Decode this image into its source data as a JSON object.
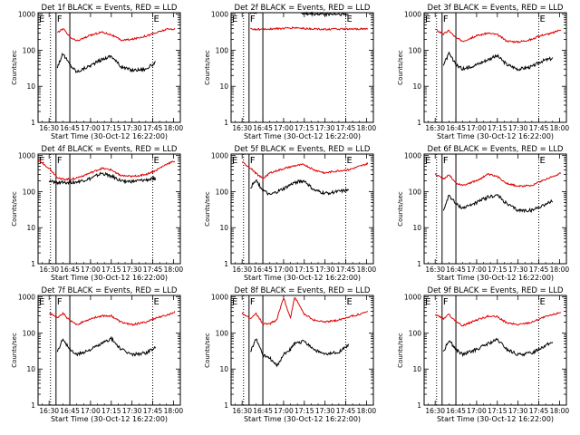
{
  "figure": {
    "ylabel": "Counts/sec",
    "xlabel": "Start Time (30-Oct-12 16:22:00)",
    "x_ticks": [
      "16:30",
      "16:45",
      "17:00",
      "17:15",
      "17:30",
      "17:45",
      "18:00"
    ],
    "y_ticks": [
      "1",
      "10",
      "100",
      "1000"
    ],
    "series_colors": {
      "events": "#000000",
      "lld": "#e00000"
    }
  },
  "chart_data": [
    {
      "type": "line",
      "title": "Det 1f BLACK = Events, RED = LLD",
      "xlabel": "Start Time (30-Oct-12 16:22:00)",
      "ylabel": "Counts/sec",
      "ylim": [
        1,
        1100
      ],
      "xlim": [
        "16:22",
        "18:05"
      ],
      "yscale": "log",
      "x": [
        "16:30",
        "16:36",
        "16:40",
        "16:45",
        "16:50",
        "17:00",
        "17:08",
        "17:15",
        "17:22",
        "17:30",
        "17:40",
        "17:47",
        "17:55",
        "18:01"
      ],
      "series": [
        {
          "name": "Events",
          "values": [
            null,
            35,
            80,
            40,
            25,
            38,
            55,
            70,
            35,
            28,
            30,
            45,
            null,
            null
          ]
        },
        {
          "name": "LLD",
          "values": [
            null,
            300,
            400,
            230,
            180,
            260,
            320,
            270,
            190,
            200,
            250,
            300,
            380,
            390
          ]
        }
      ],
      "markers": [
        {
          "label": "E",
          "time": "16:22"
        },
        {
          "label": "F",
          "time": "16:35"
        },
        {
          "label": "E",
          "time": "17:45"
        }
      ],
      "vlines_solid": [
        "16:35",
        "16:45"
      ],
      "vlines_dotted": [
        "16:31",
        "17:45"
      ]
    },
    {
      "type": "line",
      "title": "Det 2f BLACK = Events, RED = LLD",
      "xlabel": "Start Time (30-Oct-12 16:22:00)",
      "ylabel": "Counts/sec",
      "ylim": [
        1,
        1100
      ],
      "xlim": [
        "16:22",
        "18:05"
      ],
      "yscale": "log",
      "x": [
        "16:30",
        "16:36",
        "16:40",
        "16:45",
        "16:50",
        "17:00",
        "17:08",
        "17:15",
        "17:22",
        "17:30",
        "17:40",
        "17:47",
        "17:55",
        "18:01"
      ],
      "series": [
        {
          "name": "Events",
          "values": [
            null,
            1100,
            1150,
            1200,
            1200,
            1250,
            1400,
            1000,
            1000,
            1000,
            1000,
            950,
            null,
            null
          ]
        },
        {
          "name": "LLD",
          "values": [
            null,
            400,
            380,
            380,
            390,
            400,
            420,
            400,
            390,
            380,
            390,
            380,
            390,
            390
          ]
        }
      ],
      "markers": [
        {
          "label": "E",
          "time": "16:22"
        },
        {
          "label": "F",
          "time": "16:35"
        },
        {
          "label": "E",
          "time": "17:45"
        }
      ],
      "vlines_solid": [
        "16:35",
        "16:45"
      ],
      "vlines_dotted": [
        "16:31",
        "17:45"
      ]
    },
    {
      "type": "line",
      "title": "Det 3f BLACK = Events, RED = LLD",
      "xlabel": "Start Time (30-Oct-12 16:22:00)",
      "ylabel": "Counts/sec",
      "ylim": [
        1,
        1100
      ],
      "xlim": [
        "16:22",
        "18:05"
      ],
      "yscale": "log",
      "x": [
        "16:30",
        "16:36",
        "16:40",
        "16:45",
        "16:50",
        "17:00",
        "17:08",
        "17:15",
        "17:22",
        "17:30",
        "17:40",
        "17:47",
        "17:55",
        "18:01"
      ],
      "series": [
        {
          "name": "Events",
          "values": [
            null,
            40,
            80,
            40,
            30,
            40,
            55,
            70,
            40,
            30,
            35,
            50,
            60,
            null
          ]
        },
        {
          "name": "LLD",
          "values": [
            380,
            280,
            350,
            220,
            180,
            250,
            300,
            270,
            180,
            170,
            200,
            260,
            300,
            380
          ]
        }
      ],
      "markers": [
        {
          "label": "E",
          "time": "16:22"
        },
        {
          "label": "F",
          "time": "16:35"
        },
        {
          "label": "E",
          "time": "17:45"
        }
      ],
      "vlines_solid": [
        "16:35",
        "16:45"
      ],
      "vlines_dotted": [
        "16:31",
        "17:45"
      ]
    },
    {
      "type": "line",
      "title": "Det 4f BLACK = Events, RED = LLD",
      "xlabel": "Start Time (30-Oct-12 16:22:00)",
      "ylabel": "Counts/sec",
      "ylim": [
        1,
        1100
      ],
      "xlim": [
        "16:22",
        "18:05"
      ],
      "yscale": "log",
      "x": [
        "16:22",
        "16:30",
        "16:36",
        "16:40",
        "16:45",
        "16:50",
        "17:00",
        "17:08",
        "17:15",
        "17:22",
        "17:30",
        "17:40",
        "17:47",
        "17:55",
        "18:01"
      ],
      "series": [
        {
          "name": "Events",
          "values": [
            null,
            190,
            180,
            180,
            180,
            185,
            230,
            320,
            270,
            200,
            190,
            210,
            230,
            null,
            null
          ]
        },
        {
          "name": "LLD",
          "values": [
            750,
            450,
            250,
            220,
            220,
            240,
            330,
            440,
            400,
            280,
            260,
            300,
            380,
            580,
            700
          ]
        }
      ],
      "markers": [
        {
          "label": "E",
          "time": "16:22"
        },
        {
          "label": "F",
          "time": "16:35"
        },
        {
          "label": "E",
          "time": "17:45"
        }
      ],
      "vlines_solid": [
        "16:35",
        "16:45"
      ],
      "vlines_dotted": [
        "16:31",
        "17:45"
      ]
    },
    {
      "type": "line",
      "title": "Det 5f BLACK = Events, RED = LLD",
      "xlabel": "Start Time (30-Oct-12 16:22:00)",
      "ylabel": "Counts/sec",
      "ylim": [
        1,
        1100
      ],
      "xlim": [
        "16:22",
        "18:05"
      ],
      "yscale": "log",
      "x": [
        "16:30",
        "16:36",
        "16:40",
        "16:45",
        "16:50",
        "17:00",
        "17:08",
        "17:15",
        "17:22",
        "17:30",
        "17:40",
        "17:47",
        "17:55",
        "18:01"
      ],
      "series": [
        {
          "name": "Events",
          "values": [
            null,
            130,
            200,
            110,
            80,
            120,
            180,
            200,
            110,
            90,
            100,
            110,
            null,
            null
          ]
        },
        {
          "name": "LLD",
          "values": [
            650,
            450,
            320,
            230,
            330,
            430,
            520,
            560,
            400,
            330,
            380,
            400,
            500,
            600
          ]
        }
      ],
      "markers": [
        {
          "label": "E",
          "time": "16:22"
        },
        {
          "label": "F",
          "time": "16:35"
        },
        {
          "label": "E",
          "time": "17:45"
        }
      ],
      "vlines_solid": [
        "16:35",
        "16:45"
      ],
      "vlines_dotted": [
        "16:31",
        "17:45"
      ]
    },
    {
      "type": "line",
      "title": "Det 6f BLACK = Events, RED = LLD",
      "xlabel": "Start Time (30-Oct-12 16:22:00)",
      "ylabel": "Counts/sec",
      "ylim": [
        1,
        1100
      ],
      "xlim": [
        "16:22",
        "18:05"
      ],
      "yscale": "log",
      "x": [
        "16:30",
        "16:36",
        "16:40",
        "16:45",
        "16:50",
        "17:00",
        "17:08",
        "17:15",
        "17:22",
        "17:30",
        "17:40",
        "17:47",
        "17:55",
        "18:01"
      ],
      "series": [
        {
          "name": "Events",
          "values": [
            null,
            30,
            80,
            45,
            35,
            50,
            70,
            80,
            45,
            30,
            30,
            40,
            55,
            null
          ]
        },
        {
          "name": "LLD",
          "values": [
            300,
            220,
            300,
            170,
            150,
            200,
            300,
            260,
            170,
            140,
            150,
            200,
            260,
            330
          ]
        }
      ],
      "markers": [
        {
          "label": "E",
          "time": "16:22"
        },
        {
          "label": "F",
          "time": "16:35"
        },
        {
          "label": "E",
          "time": "17:45"
        }
      ],
      "vlines_solid": [
        "16:35",
        "16:45"
      ],
      "vlines_dotted": [
        "16:31",
        "17:45"
      ]
    },
    {
      "type": "line",
      "title": "Det 7f BLACK = Events, RED = LLD",
      "xlabel": "Start Time (30-Oct-12 16:22:00)",
      "ylabel": "Counts/sec",
      "ylim": [
        1,
        1100
      ],
      "xlim": [
        "16:22",
        "18:05"
      ],
      "yscale": "log",
      "x": [
        "16:30",
        "16:36",
        "16:40",
        "16:45",
        "16:50",
        "17:00",
        "17:08",
        "17:15",
        "17:22",
        "17:30",
        "17:40",
        "17:47",
        "17:55",
        "18:01"
      ],
      "series": [
        {
          "name": "Events",
          "values": [
            null,
            30,
            70,
            35,
            25,
            35,
            50,
            70,
            35,
            25,
            28,
            40,
            null,
            null
          ]
        },
        {
          "name": "LLD",
          "values": [
            350,
            270,
            350,
            220,
            170,
            250,
            300,
            300,
            200,
            170,
            200,
            260,
            310,
            380
          ]
        }
      ],
      "markers": [
        {
          "label": "E",
          "time": "16:22"
        },
        {
          "label": "F",
          "time": "16:35"
        },
        {
          "label": "E",
          "time": "17:45"
        }
      ],
      "vlines_solid": [
        "16:35",
        "16:45"
      ],
      "vlines_dotted": [
        "16:31",
        "17:45"
      ]
    },
    {
      "type": "line",
      "title": "Det 8f BLACK = Events, RED = LLD",
      "xlabel": "Start Time (30-Oct-12 16:22:00)",
      "ylabel": "Counts/sec",
      "ylim": [
        1,
        1100
      ],
      "xlim": [
        "16:22",
        "18:05"
      ],
      "yscale": "log",
      "x": [
        "16:30",
        "16:36",
        "16:40",
        "16:45",
        "16:50",
        "16:55",
        "17:00",
        "17:05",
        "17:08",
        "17:15",
        "17:22",
        "17:30",
        "17:40",
        "17:47",
        "17:55",
        "18:01"
      ],
      "series": [
        {
          "name": "Events",
          "values": [
            null,
            30,
            70,
            25,
            20,
            12,
            25,
            35,
            50,
            60,
            35,
            25,
            30,
            45,
            null,
            null
          ]
        },
        {
          "name": "LLD",
          "values": [
            350,
            250,
            350,
            180,
            180,
            230,
            950,
            260,
            1000,
            330,
            230,
            200,
            230,
            280,
            330,
            400
          ]
        }
      ],
      "markers": [
        {
          "label": "E",
          "time": "16:22"
        },
        {
          "label": "F",
          "time": "16:35"
        },
        {
          "label": "E",
          "time": "17:45"
        }
      ],
      "vlines_solid": [
        "16:35",
        "16:45"
      ],
      "vlines_dotted": [
        "16:31",
        "17:45"
      ]
    },
    {
      "type": "line",
      "title": "Det 9f BLACK = Events, RED = LLD",
      "xlabel": "Start Time (30-Oct-12 16:22:00)",
      "ylabel": "Counts/sec",
      "ylim": [
        1,
        1100
      ],
      "xlim": [
        "16:22",
        "18:05"
      ],
      "yscale": "log",
      "x": [
        "16:30",
        "16:36",
        "16:40",
        "16:45",
        "16:50",
        "17:00",
        "17:08",
        "17:15",
        "17:22",
        "17:30",
        "17:40",
        "17:47",
        "17:55",
        "18:01"
      ],
      "series": [
        {
          "name": "Events",
          "values": [
            null,
            30,
            65,
            35,
            25,
            35,
            50,
            65,
            35,
            25,
            28,
            40,
            55,
            null
          ]
        },
        {
          "name": "LLD",
          "values": [
            330,
            250,
            330,
            200,
            160,
            230,
            290,
            280,
            190,
            170,
            200,
            260,
            320,
            380
          ]
        }
      ],
      "markers": [
        {
          "label": "E",
          "time": "16:22"
        },
        {
          "label": "F",
          "time": "16:35"
        },
        {
          "label": "E",
          "time": "17:45"
        }
      ],
      "vlines_solid": [
        "16:35",
        "16:45"
      ],
      "vlines_dotted": [
        "16:31",
        "17:45"
      ]
    }
  ]
}
